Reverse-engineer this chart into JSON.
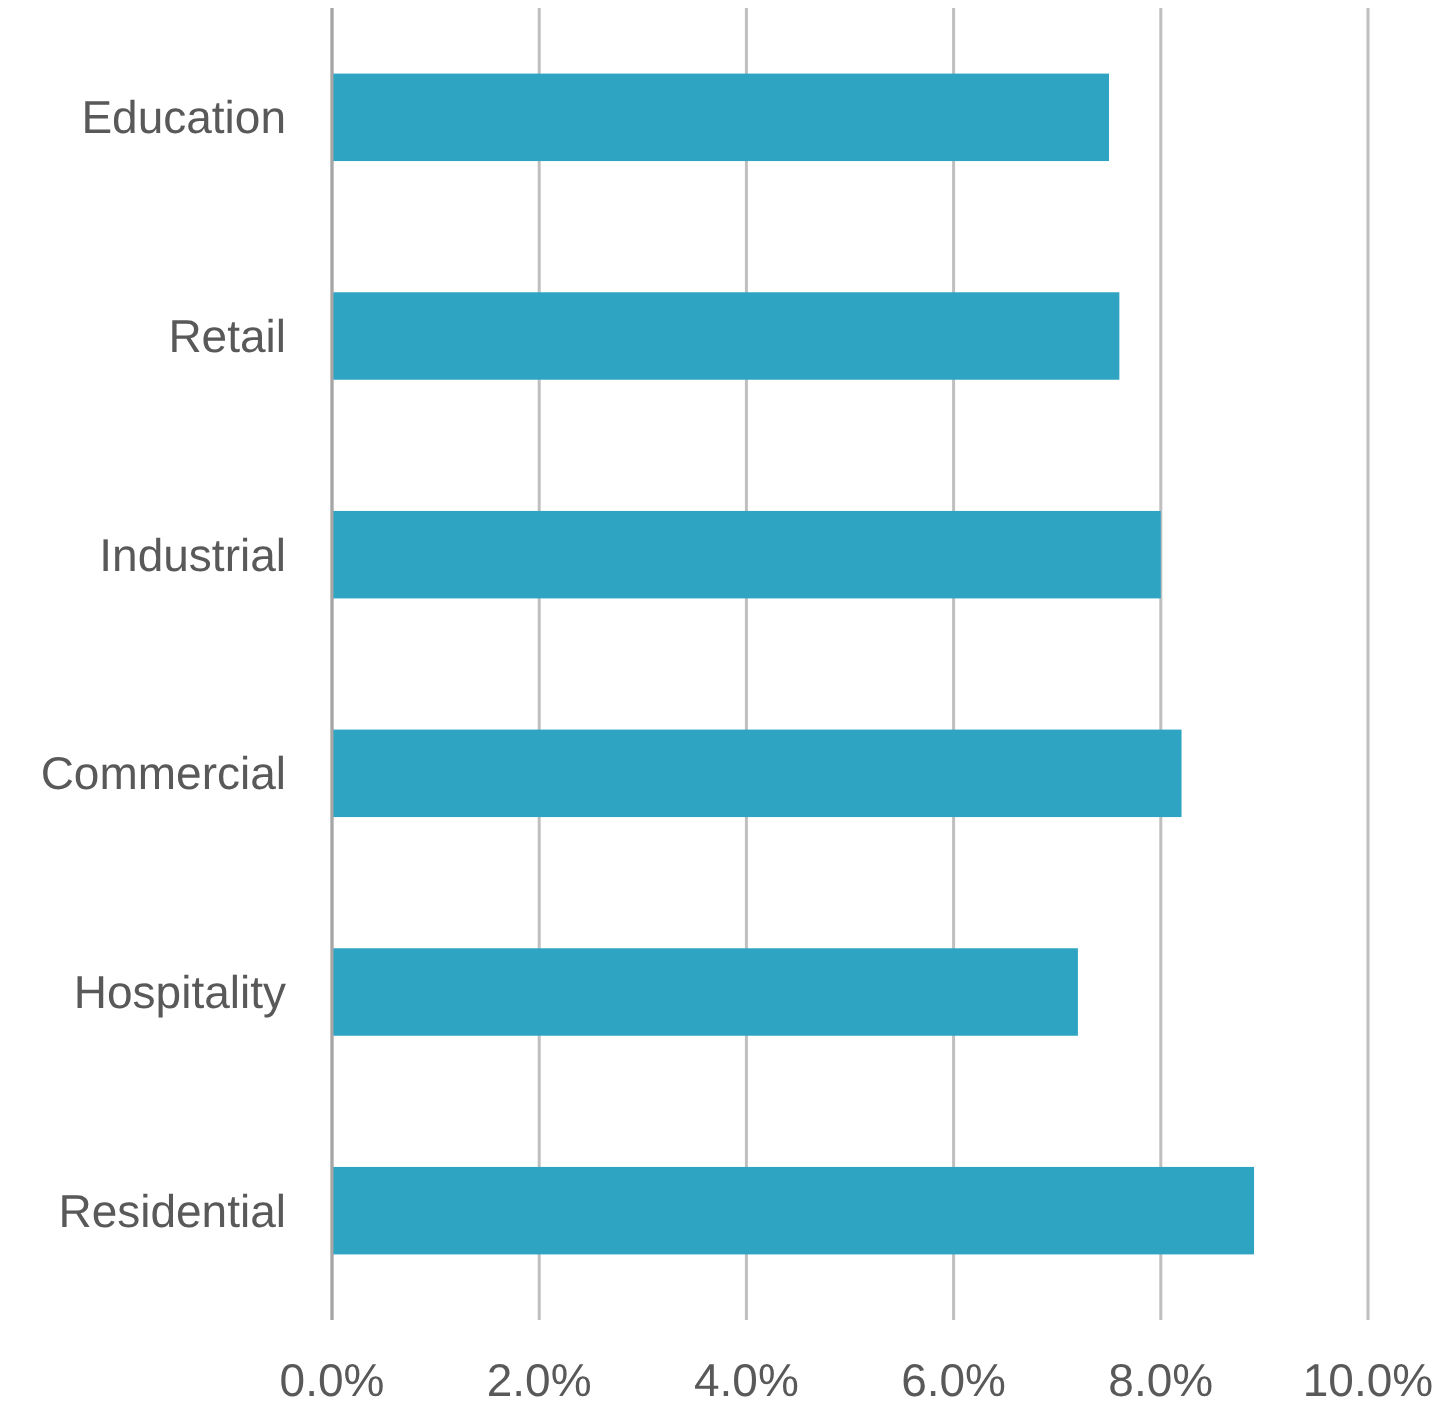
{
  "chart_data": {
    "type": "bar",
    "orientation": "horizontal",
    "categories": [
      "Education",
      "Retail",
      "Industrial",
      "Commercial",
      "Hospitality",
      "Residential"
    ],
    "values": [
      7.5,
      7.6,
      8.0,
      8.2,
      7.2,
      8.9
    ],
    "color": "#2ea4c2",
    "xlim": [
      0,
      10
    ],
    "xticks": [
      {
        "value": 0,
        "label": "0.0%"
      },
      {
        "value": 2,
        "label": "2.0%"
      },
      {
        "value": 4,
        "label": "4.0%"
      },
      {
        "value": 6,
        "label": "6.0%"
      },
      {
        "value": 8,
        "label": "8.0%"
      },
      {
        "value": 10,
        "label": "10.0%"
      }
    ],
    "grid": "x"
  }
}
